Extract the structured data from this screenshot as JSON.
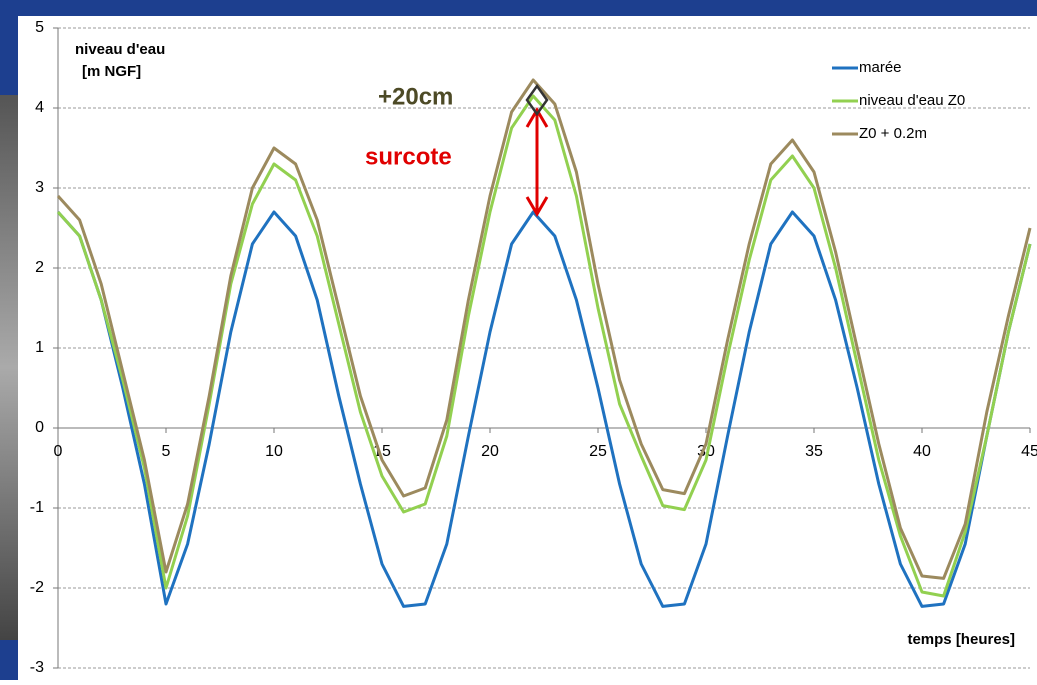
{
  "chart_data": {
    "type": "line",
    "y_label": [
      "niveau d'eau",
      "[m NGF]"
    ],
    "x_label": "temps [heures]",
    "annotations": [
      "+20cm",
      "surcote"
    ],
    "x": [
      0,
      1,
      2,
      3,
      4,
      5,
      6,
      7,
      8,
      9,
      10,
      11,
      12,
      13,
      14,
      15,
      16,
      17,
      18,
      19,
      20,
      21,
      22,
      23,
      24,
      25,
      26,
      27,
      28,
      29,
      30,
      31,
      32,
      33,
      34,
      35,
      36,
      37,
      38,
      39,
      40,
      41,
      42,
      43,
      44,
      45
    ],
    "series": [
      {
        "name": "marée",
        "color": "#1f72c0",
        "values": [
          2.7,
          2.4,
          1.6,
          0.5,
          -0.7,
          -2.2,
          -1.45,
          -0.2,
          1.2,
          2.3,
          2.7,
          2.4,
          1.6,
          0.4,
          -0.7,
          -1.7,
          -2.23,
          -2.2,
          -1.45,
          -0.1,
          1.2,
          2.3,
          2.7,
          2.4,
          1.6,
          0.5,
          -0.7,
          -1.7,
          -2.23,
          -2.2,
          -1.45,
          -0.1,
          1.2,
          2.3,
          2.7,
          2.4,
          1.6,
          0.5,
          -0.7,
          -1.7,
          -2.23,
          -2.2,
          -1.45,
          -0.1,
          1.2,
          2.3
        ]
      },
      {
        "name": "niveau d'eau Z0",
        "color": "#92d050",
        "values": [
          2.7,
          2.4,
          1.6,
          0.6,
          -0.5,
          -2.0,
          -1.1,
          0.3,
          1.8,
          2.8,
          3.3,
          3.1,
          2.4,
          1.3,
          0.2,
          -0.6,
          -1.05,
          -0.95,
          -0.1,
          1.4,
          2.7,
          3.75,
          4.15,
          3.85,
          2.9,
          1.5,
          0.3,
          -0.35,
          -0.97,
          -1.02,
          -0.4,
          0.9,
          2.1,
          3.1,
          3.4,
          3.0,
          2.0,
          0.8,
          -0.4,
          -1.35,
          -2.05,
          -2.1,
          -1.3,
          -0.1,
          1.2,
          2.3
        ]
      },
      {
        "name": "Z0 + 0.2m",
        "color": "#9c8a5e",
        "values": [
          2.9,
          2.6,
          1.8,
          0.7,
          -0.4,
          -1.8,
          -0.95,
          0.4,
          1.9,
          3.0,
          3.5,
          3.3,
          2.6,
          1.5,
          0.4,
          -0.4,
          -0.85,
          -0.75,
          0.1,
          1.6,
          2.9,
          3.95,
          4.35,
          4.05,
          3.2,
          1.8,
          0.6,
          -0.2,
          -0.77,
          -0.82,
          -0.2,
          1.1,
          2.3,
          3.3,
          3.6,
          3.2,
          2.2,
          1.0,
          -0.2,
          -1.25,
          -1.85,
          -1.88,
          -1.2,
          0.2,
          1.4,
          2.5
        ]
      }
    ],
    "xlim": [
      0,
      45
    ],
    "xticks": [
      0,
      5,
      10,
      15,
      20,
      25,
      30,
      35,
      40,
      45
    ],
    "ylim": [
      -3,
      5
    ],
    "yticks": [
      -3,
      -2,
      -1,
      0,
      1,
      2,
      3,
      4,
      5
    ],
    "grid": true,
    "legend": "top-right"
  }
}
